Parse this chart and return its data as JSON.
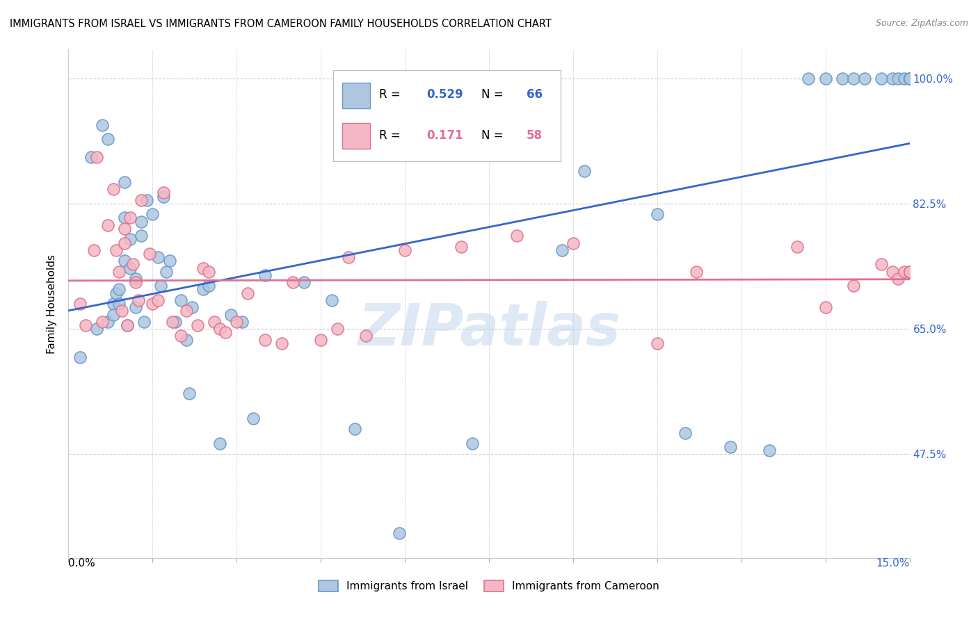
{
  "title": "IMMIGRANTS FROM ISRAEL VS IMMIGRANTS FROM CAMEROON FAMILY HOUSEHOLDS CORRELATION CHART",
  "source": "Source: ZipAtlas.com",
  "ylabel": "Family Households",
  "yticks": [
    47.5,
    65.0,
    82.5,
    100.0
  ],
  "ytick_labels": [
    "47.5%",
    "65.0%",
    "82.5%",
    "100.0%"
  ],
  "xlim": [
    0.0,
    15.0
  ],
  "ylim": [
    33.0,
    104.0
  ],
  "r_israel": 0.529,
  "n_israel": 66,
  "r_cameroon": 0.171,
  "n_cameroon": 58,
  "israel_color": "#aec6e0",
  "israel_edge": "#6699cc",
  "cameroon_color": "#f4b8c4",
  "cameroon_edge": "#e07090",
  "trendline_israel_color": "#3366cc",
  "trendline_cameroon_color": "#e07090",
  "legend_label_israel": "Immigrants from Israel",
  "legend_label_cameroon": "Immigrants from Cameroon",
  "watermark_text": "ZIPatlas",
  "background_color": "#ffffff",
  "grid_color": "#cccccc",
  "israel_x": [
    0.2,
    0.4,
    0.5,
    0.6,
    0.7,
    0.7,
    0.8,
    0.8,
    0.85,
    0.9,
    0.9,
    1.0,
    1.0,
    1.0,
    1.05,
    1.1,
    1.1,
    1.2,
    1.2,
    1.3,
    1.3,
    1.35,
    1.4,
    1.5,
    1.6,
    1.65,
    1.7,
    1.75,
    1.8,
    1.9,
    2.0,
    2.1,
    2.15,
    2.2,
    2.4,
    2.5,
    2.7,
    2.9,
    3.1,
    3.3,
    3.5,
    4.2,
    4.7,
    5.1,
    5.9,
    7.2,
    8.8,
    9.2,
    10.5,
    11.0,
    11.8,
    12.5,
    13.2,
    13.5,
    13.8,
    14.0,
    14.2,
    14.5,
    14.7,
    14.8,
    14.9,
    15.0,
    15.0,
    15.0,
    15.0,
    15.0
  ],
  "israel_y": [
    61.0,
    89.0,
    65.0,
    93.5,
    91.5,
    66.0,
    68.5,
    67.0,
    70.0,
    70.5,
    68.5,
    85.5,
    80.5,
    74.5,
    65.5,
    77.5,
    73.5,
    72.0,
    68.0,
    80.0,
    78.0,
    66.0,
    83.0,
    81.0,
    75.0,
    71.0,
    83.5,
    73.0,
    74.5,
    66.0,
    69.0,
    63.5,
    56.0,
    68.0,
    70.5,
    71.0,
    49.0,
    67.0,
    66.0,
    52.5,
    72.5,
    71.5,
    69.0,
    51.0,
    36.5,
    49.0,
    76.0,
    87.0,
    81.0,
    50.5,
    48.5,
    48.0,
    100.0,
    100.0,
    100.0,
    100.0,
    100.0,
    100.0,
    100.0,
    100.0,
    100.0,
    100.0,
    100.0,
    100.0,
    100.0,
    100.0
  ],
  "cameroon_x": [
    0.2,
    0.3,
    0.45,
    0.5,
    0.6,
    0.7,
    0.8,
    0.85,
    0.9,
    0.95,
    1.0,
    1.0,
    1.05,
    1.1,
    1.15,
    1.2,
    1.25,
    1.3,
    1.45,
    1.5,
    1.6,
    1.7,
    1.85,
    2.0,
    2.1,
    2.3,
    2.4,
    2.5,
    2.6,
    2.7,
    2.8,
    3.0,
    3.2,
    3.5,
    3.8,
    4.0,
    4.5,
    4.8,
    5.0,
    5.3,
    6.0,
    7.0,
    8.0,
    9.0,
    10.5,
    11.2,
    13.0,
    13.5,
    14.0,
    14.5,
    14.7,
    14.8,
    14.9,
    15.0,
    15.0,
    15.0,
    15.0,
    15.0
  ],
  "cameroon_y": [
    68.5,
    65.5,
    76.0,
    89.0,
    66.0,
    79.5,
    84.5,
    76.0,
    73.0,
    67.5,
    79.0,
    77.0,
    65.5,
    80.5,
    74.0,
    71.5,
    69.0,
    83.0,
    75.5,
    68.5,
    69.0,
    84.0,
    66.0,
    64.0,
    67.5,
    65.5,
    73.5,
    73.0,
    66.0,
    65.0,
    64.5,
    66.0,
    70.0,
    63.5,
    63.0,
    71.5,
    63.5,
    65.0,
    75.0,
    64.0,
    76.0,
    76.5,
    78.0,
    77.0,
    63.0,
    73.0,
    76.5,
    68.0,
    71.0,
    74.0,
    73.0,
    72.0,
    73.0,
    73.0,
    73.0,
    73.0,
    73.0,
    73.0
  ]
}
